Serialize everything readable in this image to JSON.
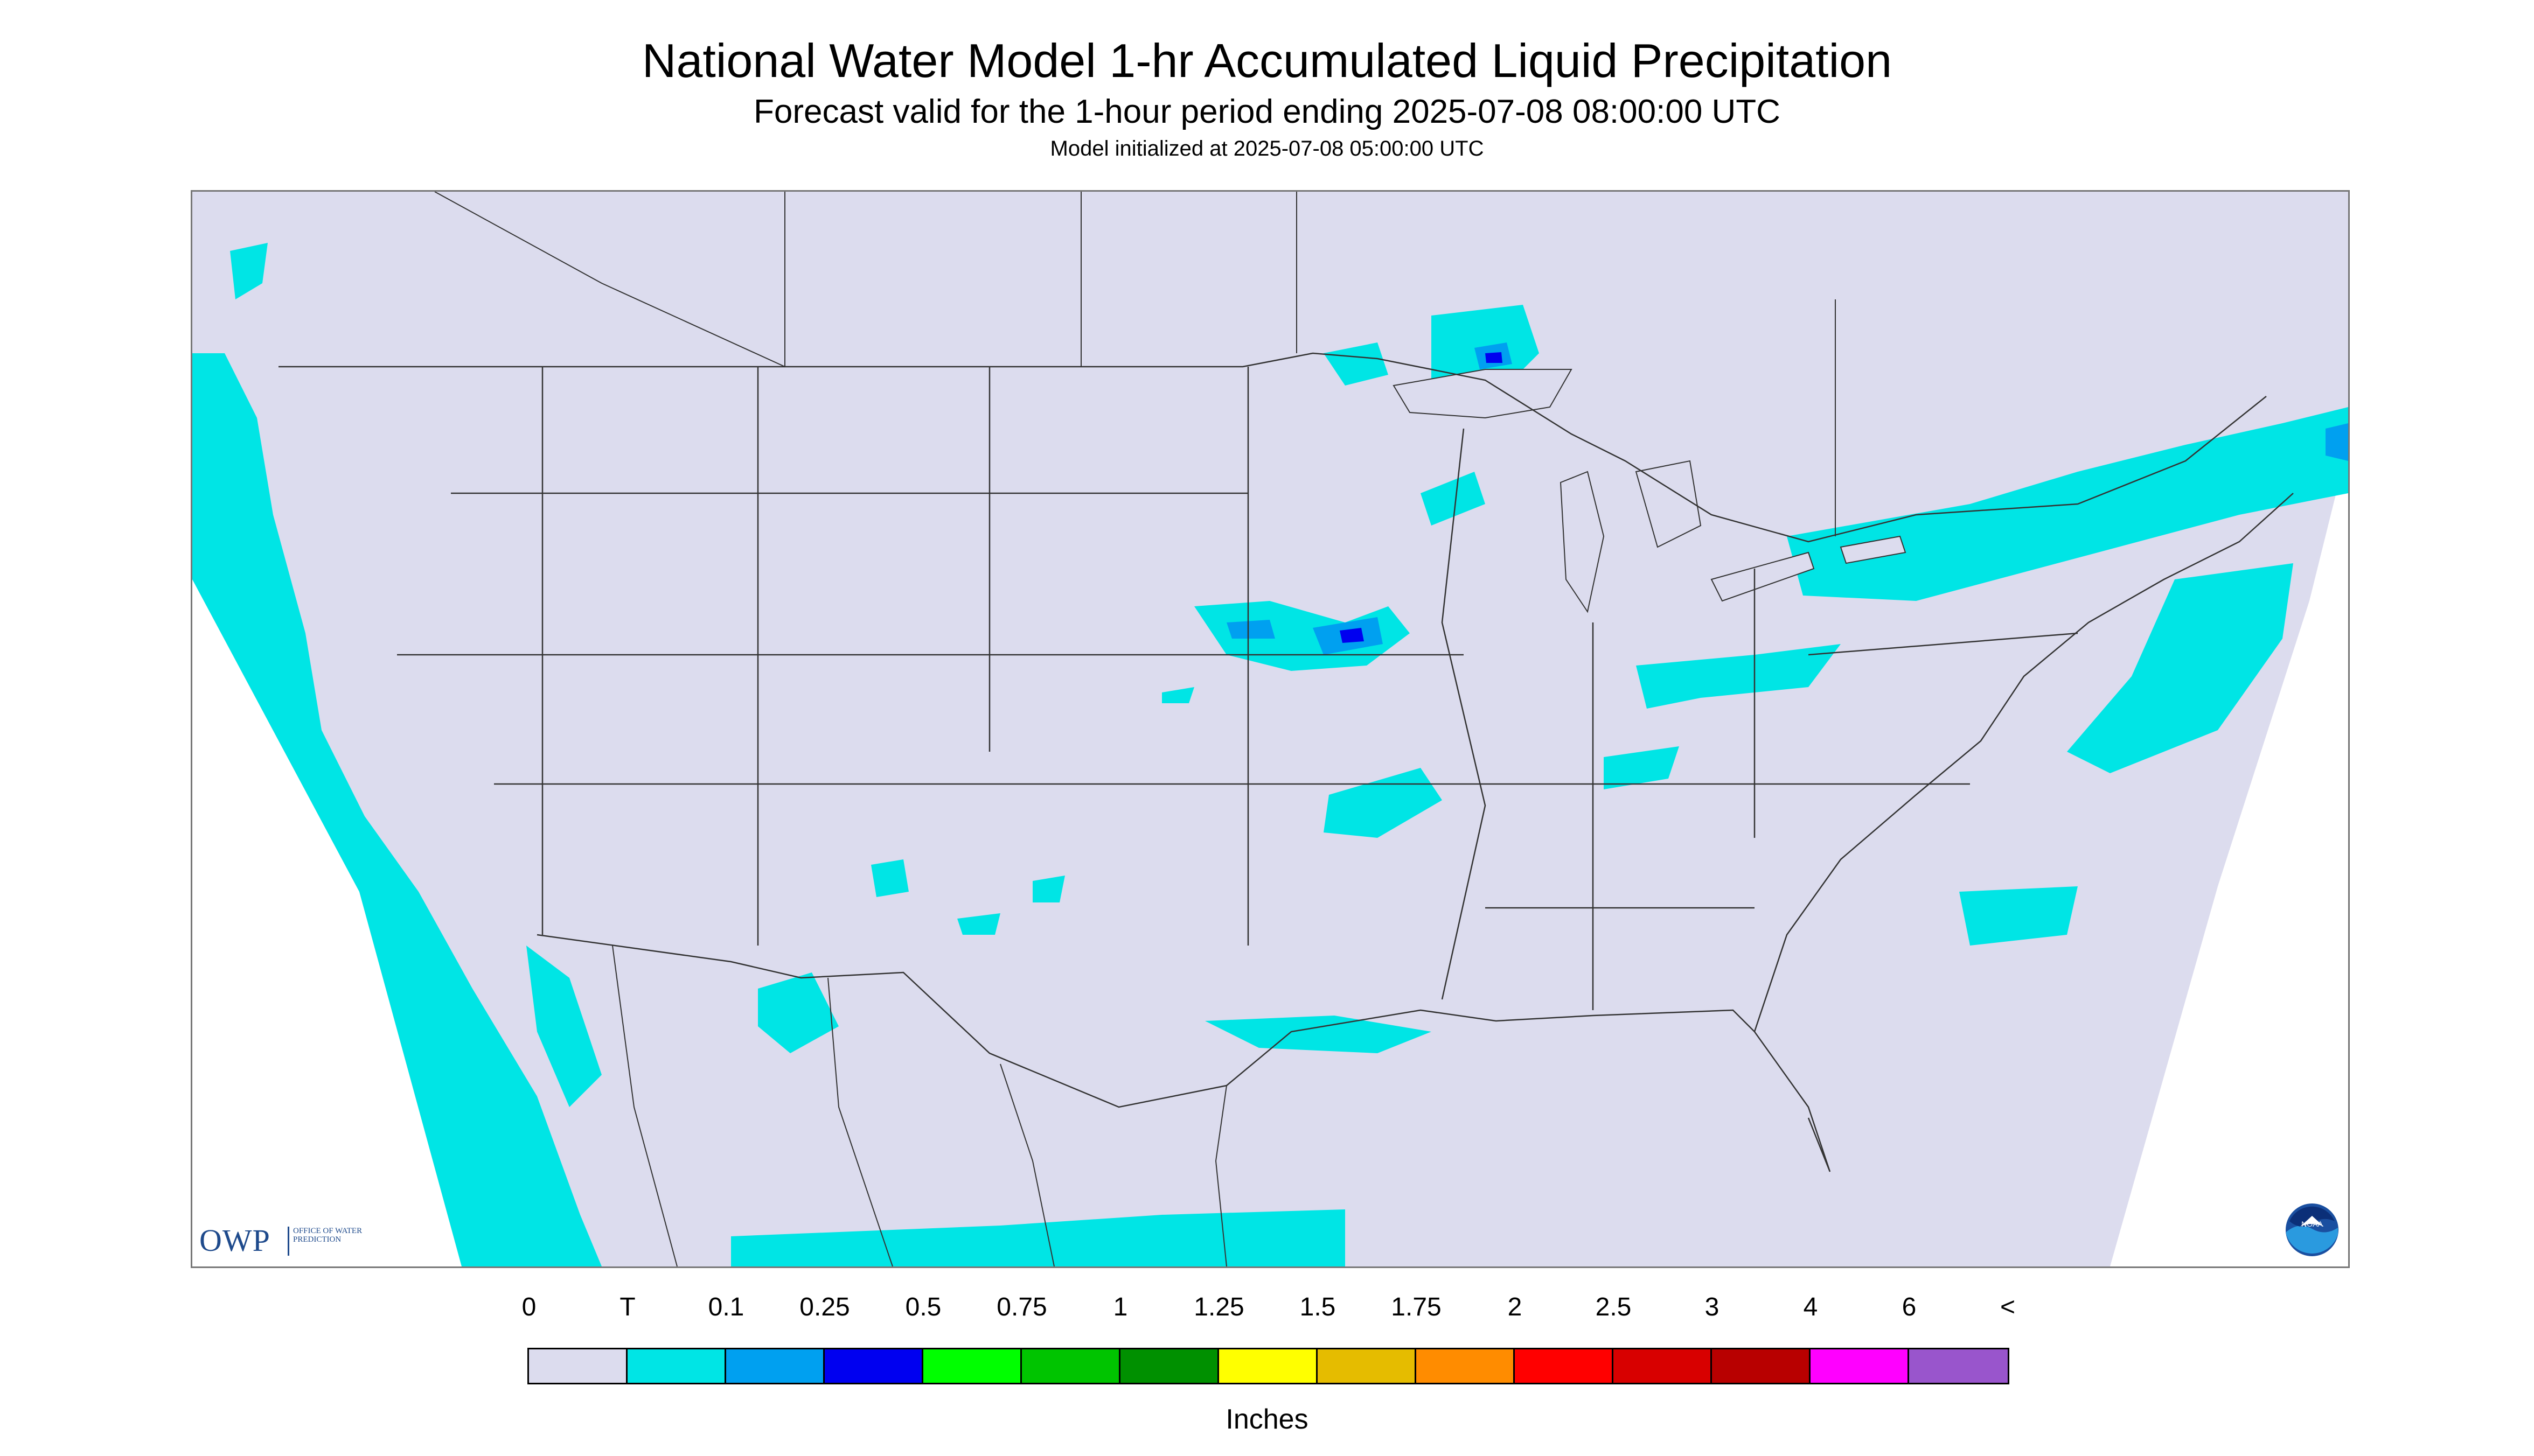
{
  "header": {
    "title": "National Water Model 1-hr Accumulated Liquid Precipitation",
    "subtitle": "Forecast valid for the 1-hour period ending 2025-07-08 08:00:00 UTC",
    "init": "Model initialized at 2025-07-08 05:00:00 UTC"
  },
  "colors": {
    "land": "#dcdcee",
    "trace": "#00e5e5",
    "ocean_outside": "#ffffff",
    "boundary": "#333333"
  },
  "legend": {
    "labels": [
      "0",
      "T",
      "0.1",
      "0.25",
      "0.5",
      "0.75",
      "1",
      "1.25",
      "1.5",
      "1.75",
      "2",
      "2.5",
      "3",
      "4",
      "6",
      "<"
    ],
    "colors": [
      "#dcdcee",
      "#00e5e5",
      "#00a0f0",
      "#0000f0",
      "#00ff00",
      "#00c400",
      "#009000",
      "#ffff00",
      "#e5bc00",
      "#ff8c00",
      "#ff0000",
      "#d80000",
      "#b80000",
      "#ff00ff",
      "#9955cc"
    ],
    "units": "Inches"
  },
  "logos": {
    "owp_letters": "OWP",
    "owp_text": "OFFICE OF WATER PREDICTION",
    "noaa_text": "NOAA"
  },
  "icons": [
    "owp-logo-icon",
    "noaa-logo-icon"
  ]
}
